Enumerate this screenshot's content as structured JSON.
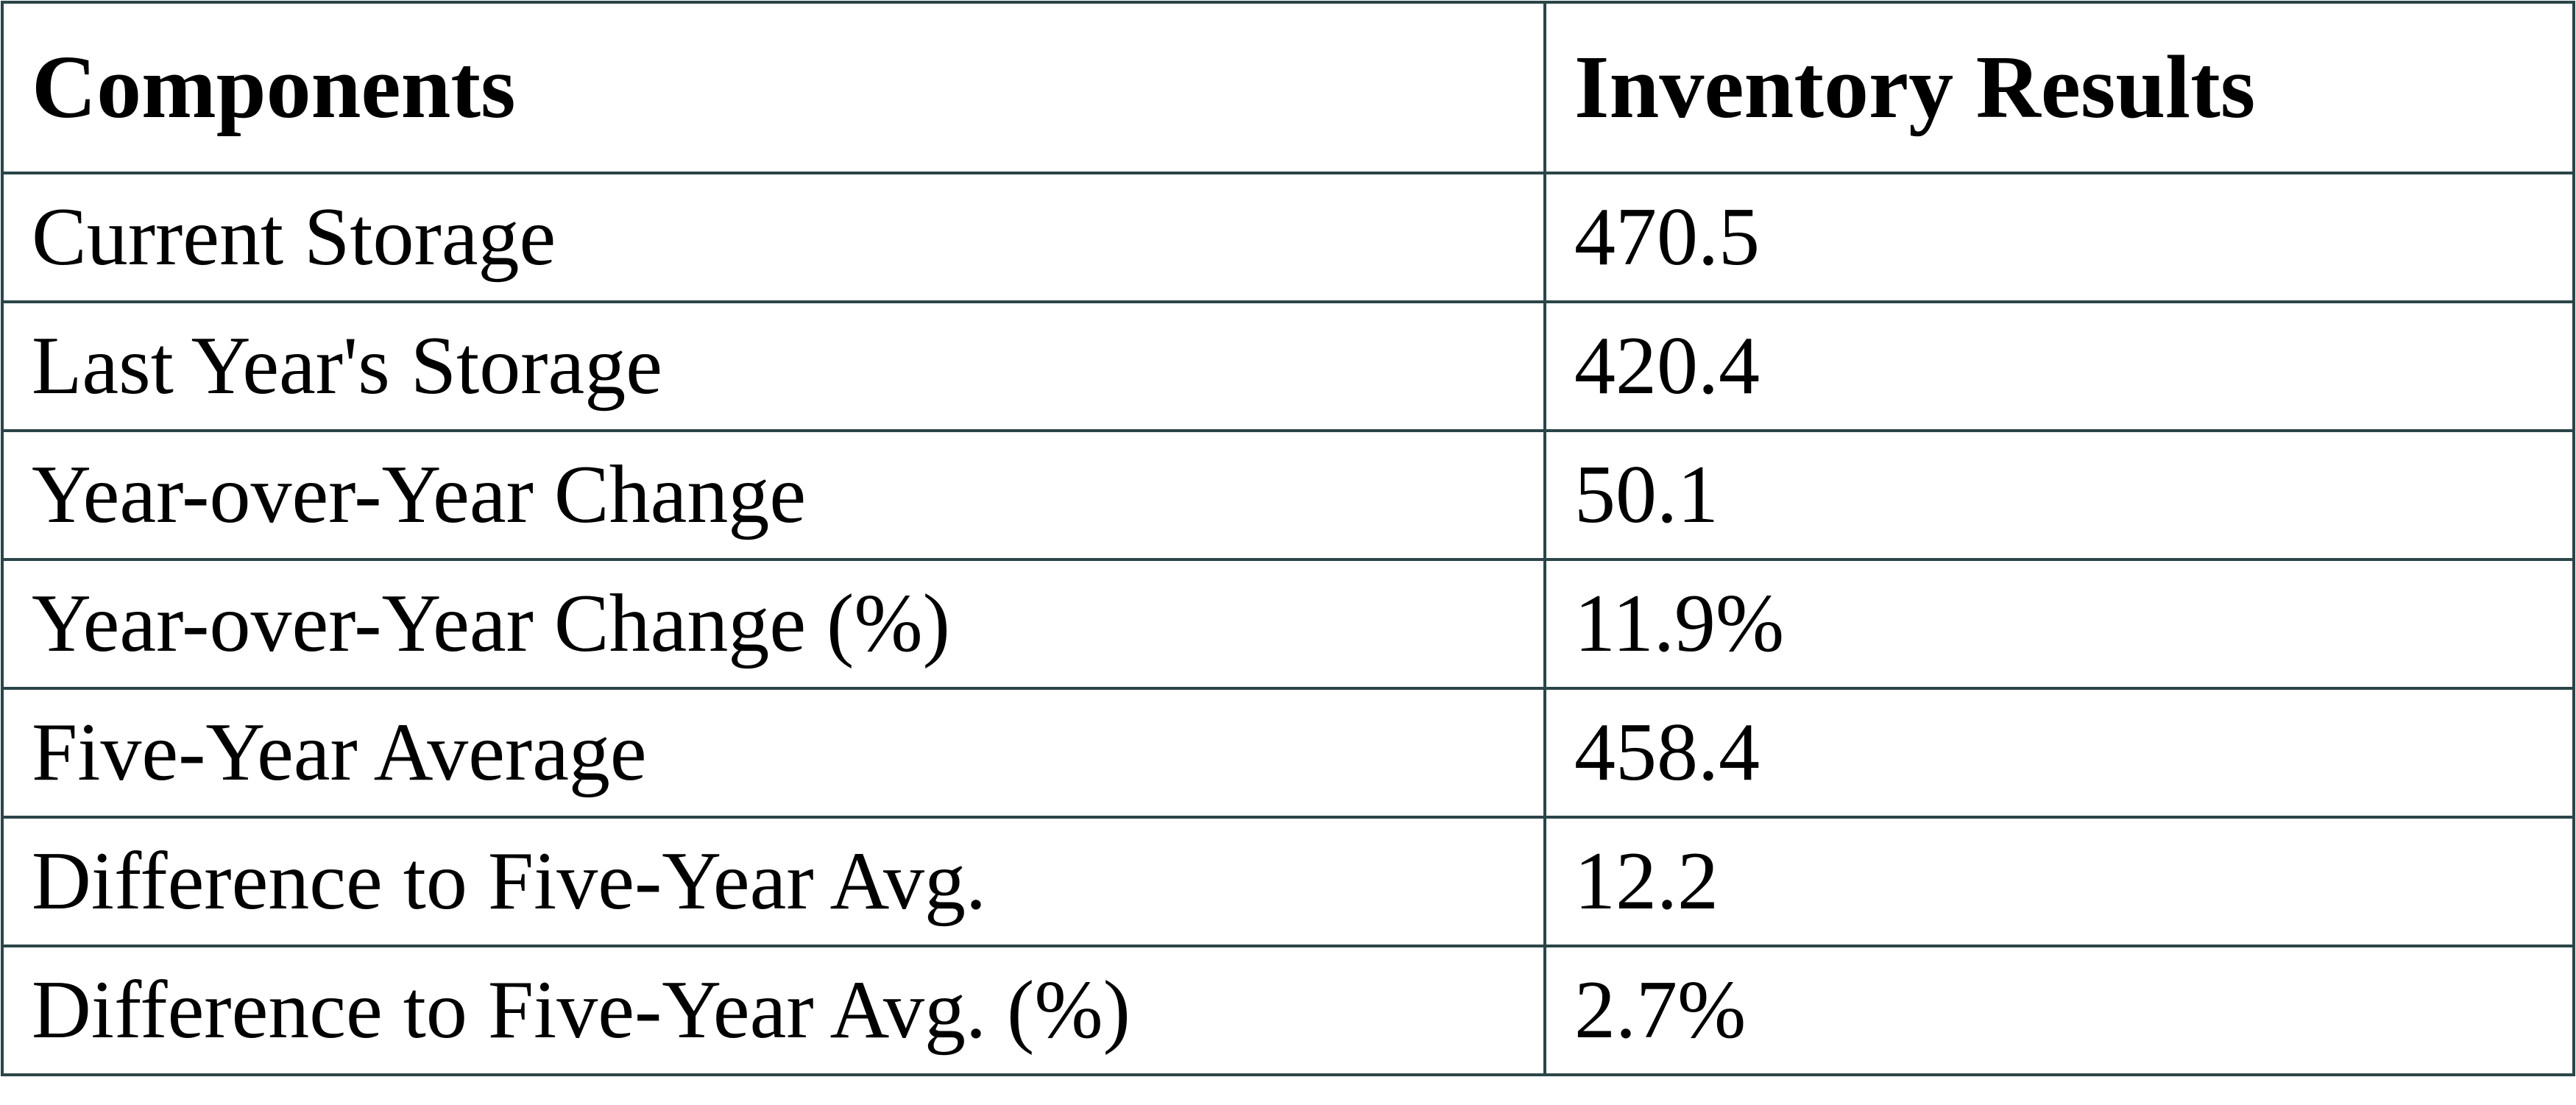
{
  "table": {
    "header": [
      "Components",
      "Inventory Results"
    ],
    "rows": [
      [
        "Current Storage",
        "470.5"
      ],
      [
        "Last Year's Storage",
        "420.4"
      ],
      [
        "Year-over-Year Change",
        "50.1"
      ],
      [
        "Year-over-Year Change (%)",
        "11.9%"
      ],
      [
        "Five-Year Average",
        "458.4"
      ],
      [
        "Difference to Five-Year Avg.",
        "12.2"
      ],
      [
        "Difference to Five-Year Avg. (%)",
        "2.7%"
      ]
    ]
  }
}
